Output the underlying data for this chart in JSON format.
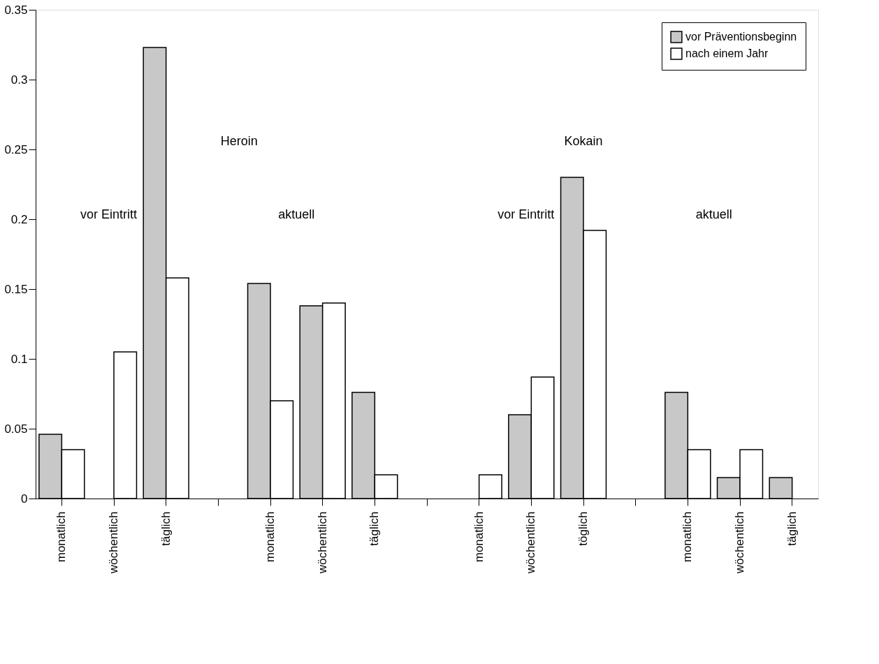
{
  "chart_data": {
    "type": "bar",
    "categories": [
      "monatlich",
      "wöchentlich",
      "täglich",
      null,
      "monatlich",
      "wöchentlich",
      "täglich",
      null,
      "monatlich",
      "wöchentlich",
      "töglich",
      null,
      "monatlich",
      "wöchentlich",
      "täglich"
    ],
    "series": [
      {
        "name": "vor Präventionsbeginn",
        "color": "#c8c8c8",
        "values": [
          0.046,
          null,
          0.323,
          null,
          0.154,
          0.138,
          0.076,
          null,
          null,
          0.06,
          0.23,
          null,
          0.076,
          0.015,
          0.015
        ]
      },
      {
        "name": "nach einem Jahr",
        "color": "#ffffff",
        "values": [
          0.035,
          0.105,
          0.158,
          null,
          0.07,
          0.14,
          0.017,
          null,
          0.017,
          0.087,
          0.192,
          null,
          0.035,
          0.035,
          null
        ]
      }
    ],
    "annotations": [
      "Heroin",
      "Kokain",
      "vor Eintritt",
      "aktuell",
      "vor Eintritt",
      "aktuell"
    ],
    "ylim": [
      0,
      0.35
    ],
    "yticks": [
      0,
      0.05,
      0.1,
      0.15,
      0.2,
      0.25,
      0.3,
      0.35
    ],
    "grid": false,
    "legend": "top right"
  }
}
